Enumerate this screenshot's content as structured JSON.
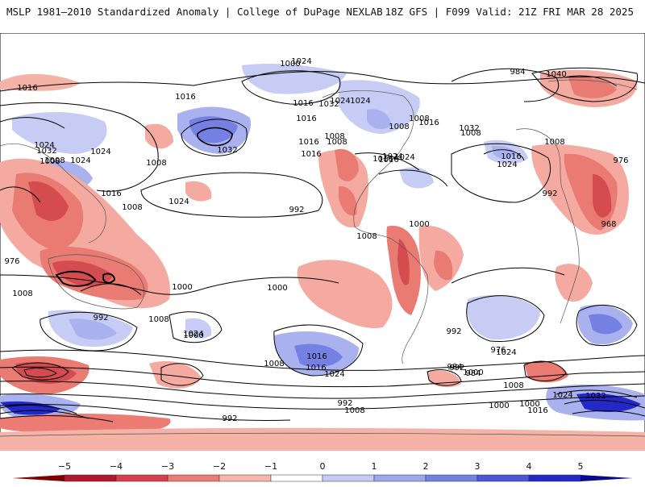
{
  "header": {
    "left_title": "MSLP 1981–2010 Standardized Anomaly | College of DuPage NEXLAB",
    "right_title": "18Z GFS | F099 Valid: 21Z FRI MAR 28 2025"
  },
  "map": {
    "projection": "global cylindrical",
    "isobar_labels": [
      "1024",
      "1016",
      "1032",
      "1024",
      "1024",
      "1016",
      "1008",
      "1016",
      "1000",
      "1016",
      "1024",
      "1032",
      "1024",
      "1016",
      "1032",
      "1008",
      "1024",
      "1008",
      "1008",
      "1016",
      "1008",
      "1008",
      "1016",
      "1016",
      "1016",
      "1024",
      "1024",
      "1008",
      "1008",
      "1016",
      "1008",
      "1016",
      "1024",
      "1008",
      "1024",
      "992",
      "1008",
      "1000",
      "992",
      "968",
      "976",
      "984",
      "1040",
      "1032",
      "1000",
      "1008",
      "976",
      "1000",
      "992",
      "1024",
      "1008",
      "1000",
      "1008",
      "1016",
      "1016",
      "1024",
      "992",
      "984",
      "1000",
      "1024",
      "976",
      "992",
      "984",
      "1008",
      "1000",
      "1016",
      "1024",
      "1032",
      "992",
      "1008",
      "1000",
      "992"
    ]
  },
  "colorbar": {
    "ticks": [
      "−5",
      "−4",
      "−3",
      "−2",
      "−1",
      "0",
      "1",
      "2",
      "3",
      "4",
      "5"
    ],
    "colors": [
      "#7f0000",
      "#b2182b",
      "#d6404e",
      "#ec7b73",
      "#f7b6a8",
      "#ffffff",
      "#c6cbf5",
      "#9ea6ee",
      "#7581e2",
      "#4b55d8",
      "#2329c8",
      "#0a0a8c"
    ]
  }
}
